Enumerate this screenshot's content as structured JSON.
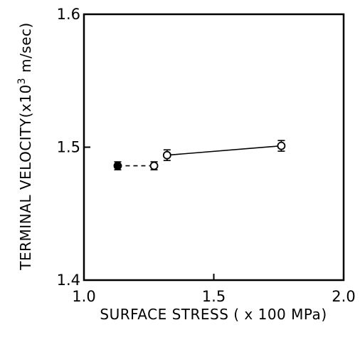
{
  "chart_data": {
    "type": "scatter",
    "title": "",
    "xlabel": "SURFACE  STRESS  ( x 100 MPa)",
    "ylabel": "TERMINAL VELOCITY(x10",
    "ylabel_sup": "3",
    "ylabel_unit": " m/sec)",
    "xlim": [
      1.0,
      2.0
    ],
    "ylim": [
      1.4,
      1.6
    ],
    "xticks": [
      1.0,
      1.5,
      2.0
    ],
    "xtick_labels": [
      "1.0",
      "1.5",
      "2.0"
    ],
    "yticks": [
      1.4,
      1.5,
      1.6
    ],
    "ytick_labels": [
      "1.4",
      "1.5",
      "1.6"
    ],
    "grid": false,
    "series": [
      {
        "marker": "filled-circle",
        "points": [
          {
            "x": 1.13,
            "y": 1.486,
            "err": 0.003
          }
        ]
      },
      {
        "marker": "open-circle",
        "points": [
          {
            "x": 1.27,
            "y": 1.486,
            "err": 0.003
          },
          {
            "x": 1.32,
            "y": 1.494,
            "err": 0.004
          },
          {
            "x": 1.76,
            "y": 1.501,
            "err": 0.004
          }
        ]
      }
    ],
    "lines": [
      {
        "style": "dashed",
        "from": [
          1.13,
          1.486
        ],
        "to": [
          1.27,
          1.486
        ]
      },
      {
        "style": "solid",
        "from": [
          1.32,
          1.494
        ],
        "to": [
          1.76,
          1.501
        ]
      }
    ]
  }
}
